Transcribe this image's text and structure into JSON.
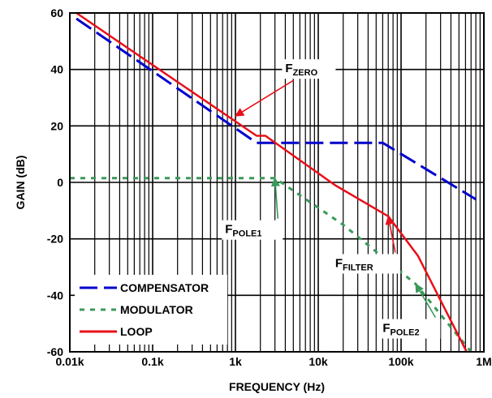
{
  "chart_data": {
    "type": "line",
    "xlabel": "FREQUENCY (Hz)",
    "ylabel": "GAIN (dB)",
    "x_scale": "log",
    "xlim": [
      10,
      1000000
    ],
    "ylim": [
      -60,
      60
    ],
    "grid": true,
    "legend_placement": "bottom-left",
    "x_ticks": [
      10,
      100,
      1000,
      10000,
      100000,
      1000000
    ],
    "x_tick_labels": [
      "0.01k",
      "0.1k",
      "1k",
      "10k",
      "100k",
      "1M"
    ],
    "y_ticks": [
      60,
      40,
      20,
      0,
      -20,
      -40,
      -60
    ],
    "y_tick_labels": [
      "60",
      "40",
      "20",
      "0",
      "-20",
      "-40",
      "-60"
    ],
    "series": [
      {
        "name": "COMPENSATOR",
        "color": "#0000cc",
        "dash": "long-dash",
        "points": [
          [
            12,
            58
          ],
          [
            1800,
            14
          ],
          [
            60000,
            14
          ],
          [
            800000,
            -6
          ]
        ]
      },
      {
        "name": "MODULATOR",
        "color": "#3a9a5a",
        "dash": "dotted",
        "points": [
          [
            10,
            1.5
          ],
          [
            3000,
            1.5
          ],
          [
            20000,
            -15
          ],
          [
            150000,
            -36
          ],
          [
            700000,
            -60
          ]
        ]
      },
      {
        "name": "LOOP",
        "color": "#e8101a",
        "dash": "solid",
        "points": [
          [
            12,
            60
          ],
          [
            1800,
            16.5
          ],
          [
            2300,
            16.5
          ],
          [
            16000,
            -1
          ],
          [
            70000,
            -12
          ],
          [
            160000,
            -26
          ],
          [
            620000,
            -60
          ]
        ]
      }
    ],
    "annotations": [
      {
        "main": "F",
        "sub": "ZERO",
        "x": 4000,
        "y": 39,
        "arrow_to": [
          1000,
          23.5
        ]
      },
      {
        "main": "F",
        "sub": "POLE1",
        "x": 750,
        "y": -18,
        "arrow_to": [
          3000,
          1.5
        ]
      },
      {
        "main": "F",
        "sub": "FILTER",
        "x": 16000,
        "y": -30,
        "arrow_to": [
          70000,
          -12
        ]
      },
      {
        "main": "F",
        "sub": "POLE2",
        "x": 60000,
        "y": -53,
        "arrow_to": [
          150000,
          -36
        ]
      }
    ]
  }
}
